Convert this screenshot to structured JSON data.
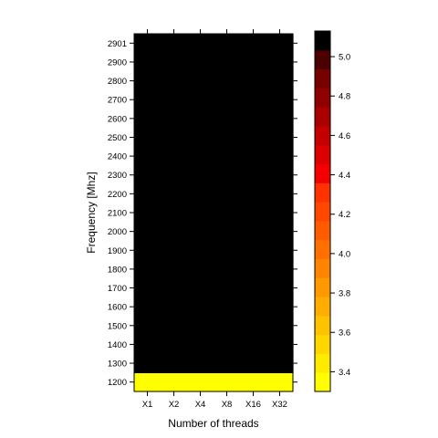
{
  "chart_data": {
    "type": "heatmap",
    "title": "",
    "xlabel": "Number of threads",
    "ylabel": "Frequency [Mhz]",
    "x_categories": [
      "X1",
      "X2",
      "X4",
      "X8",
      "X16",
      "X32"
    ],
    "y_categories": [
      "1200",
      "1300",
      "1400",
      "1500",
      "1600",
      "1700",
      "1800",
      "1900",
      "2000",
      "2100",
      "2200",
      "2300",
      "2400",
      "2500",
      "2600",
      "2700",
      "2800",
      "2900",
      "2901"
    ],
    "values": [
      [
        3.3,
        3.3,
        3.3,
        3.3,
        3.3,
        3.3
      ],
      [
        5.1,
        5.1,
        5.1,
        5.1,
        5.1,
        5.1
      ],
      [
        5.1,
        5.1,
        5.1,
        5.1,
        5.1,
        5.1
      ],
      [
        5.1,
        5.1,
        5.1,
        5.1,
        5.1,
        5.1
      ],
      [
        5.1,
        5.1,
        5.1,
        5.1,
        5.1,
        5.1
      ],
      [
        5.1,
        5.1,
        5.1,
        5.1,
        5.1,
        5.1
      ],
      [
        5.1,
        5.1,
        5.1,
        5.1,
        5.1,
        5.1
      ],
      [
        5.1,
        5.1,
        5.1,
        5.1,
        5.1,
        5.1
      ],
      [
        5.1,
        5.1,
        5.1,
        5.1,
        5.1,
        5.1
      ],
      [
        5.1,
        5.1,
        5.1,
        5.1,
        5.1,
        5.1
      ],
      [
        5.1,
        5.1,
        5.1,
        5.1,
        5.1,
        5.1
      ],
      [
        5.1,
        5.1,
        5.1,
        5.1,
        5.1,
        5.1
      ],
      [
        5.1,
        5.1,
        5.1,
        5.1,
        5.1,
        5.1
      ],
      [
        5.1,
        5.1,
        5.1,
        5.1,
        5.1,
        5.1
      ],
      [
        5.1,
        5.1,
        5.1,
        5.1,
        5.1,
        5.1
      ],
      [
        5.1,
        5.1,
        5.1,
        5.1,
        5.1,
        5.1
      ],
      [
        5.1,
        5.1,
        5.1,
        5.1,
        5.1,
        5.1
      ],
      [
        5.1,
        5.1,
        5.1,
        5.1,
        5.1,
        5.1
      ],
      [
        5.1,
        5.1,
        5.1,
        5.1,
        5.1,
        5.1
      ]
    ],
    "colorbar": {
      "range": [
        3.3,
        5.13
      ],
      "ticks": [
        3.4,
        3.6,
        3.8,
        4.0,
        4.2,
        4.4,
        4.6,
        4.8,
        5.0
      ],
      "tick_labels": [
        "3.4",
        "3.6",
        "3.8",
        "4.0",
        "4.2",
        "4.4",
        "4.6",
        "4.8",
        "5.0"
      ],
      "colors": [
        "#FFFF00",
        "#FFEB00",
        "#FFD600",
        "#FFC200",
        "#FFAD00",
        "#FF9900",
        "#FF8500",
        "#FF7000",
        "#FF5C00",
        "#FF4700",
        "#FF3300",
        "#F50000",
        "#DC0000",
        "#C30000",
        "#AA0000",
        "#900000",
        "#770000",
        "#4A0000",
        "#000000"
      ]
    }
  }
}
